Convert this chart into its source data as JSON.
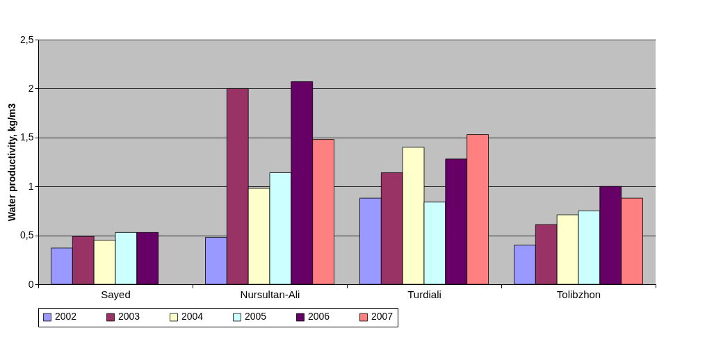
{
  "chart_data": {
    "type": "bar",
    "ylabel": "Water productivity, kg/m3",
    "categories": [
      "Sayed",
      "Nursultan-Ali",
      "Turdiali",
      "Tolibzhon"
    ],
    "series": [
      {
        "name": "2002",
        "color": "#9999ff",
        "values": [
          0.37,
          0.48,
          0.88,
          0.4
        ]
      },
      {
        "name": "2003",
        "color": "#993366",
        "values": [
          0.49,
          2.0,
          1.14,
          0.61
        ]
      },
      {
        "name": "2004",
        "color": "#ffffcc",
        "values": [
          0.45,
          0.98,
          1.4,
          0.71
        ]
      },
      {
        "name": "2005",
        "color": "#ccffff",
        "values": [
          0.53,
          1.14,
          0.84,
          0.75
        ]
      },
      {
        "name": "2006",
        "color": "#660066",
        "values": [
          0.53,
          2.07,
          1.28,
          1.0
        ]
      },
      {
        "name": "2007",
        "color": "#ff8080",
        "values": [
          null,
          1.48,
          1.53,
          0.88
        ]
      }
    ],
    "ylim": [
      0,
      2.5
    ],
    "yticks": [
      0,
      {
        "value": 0.5,
        "label": "0,5"
      },
      1,
      {
        "value": 1.5,
        "label": "1,5"
      },
      2,
      {
        "value": 2.5,
        "label": "2,5"
      }
    ],
    "grid": "y",
    "legend": "bottom"
  }
}
